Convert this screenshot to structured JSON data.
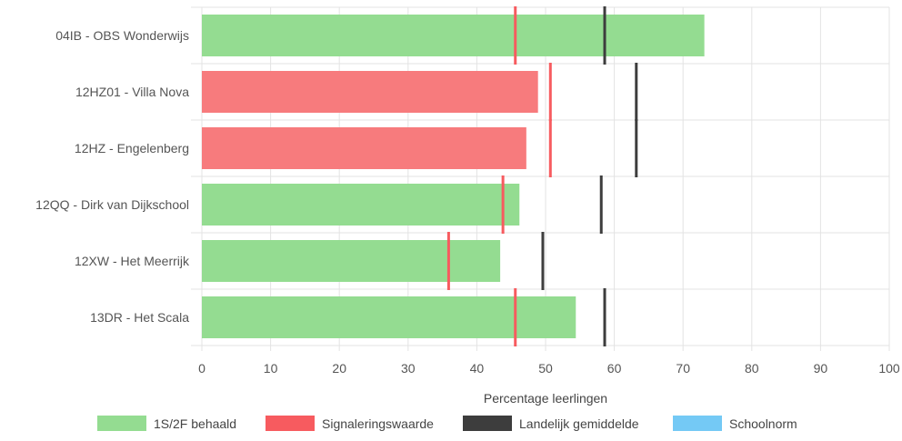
{
  "chart_data": {
    "type": "bar",
    "orientation": "horizontal",
    "categories": [
      "04IB - OBS Wonderwijs",
      "12HZ01 - Villa Nova",
      "12HZ - Engelenberg",
      "12QQ - Dirk van Dijkschool",
      "12XW - Het Meerrijk",
      "13DR - Het Scala"
    ],
    "values": [
      73.1,
      48.9,
      47.2,
      46.2,
      43.4,
      54.4
    ],
    "bar_status": [
      "ok",
      "below",
      "below",
      "ok",
      "ok",
      "ok"
    ],
    "signaleringswaarde": [
      45.6,
      50.7,
      50.7,
      43.8,
      35.9,
      45.6
    ],
    "landelijk_gemiddelde": [
      58.6,
      63.2,
      63.2,
      58.1,
      49.6,
      58.6
    ],
    "xlim": [
      0,
      100
    ],
    "xticks": [
      0,
      10,
      20,
      30,
      40,
      50,
      60,
      70,
      80,
      90,
      100
    ],
    "xlabel": "Percentage leerlingen",
    "grid": true,
    "legend_position": "bottom",
    "legend": [
      {
        "label": "1S/2F behaald",
        "color": "#94dc91"
      },
      {
        "label": "Signaleringswaarde",
        "color": "#f75b5f"
      },
      {
        "label": "Landelijk gemiddelde",
        "color": "#3d3d3d"
      },
      {
        "label": "Schoolnorm",
        "color": "#74c9f5"
      }
    ],
    "colors": {
      "bar_ok": "#94dc91",
      "bar_below": "#f77b7d",
      "signalering_line": "#f75b5f",
      "landelijk_line": "#3d3d3d",
      "grid": "#e3e3e3"
    }
  }
}
